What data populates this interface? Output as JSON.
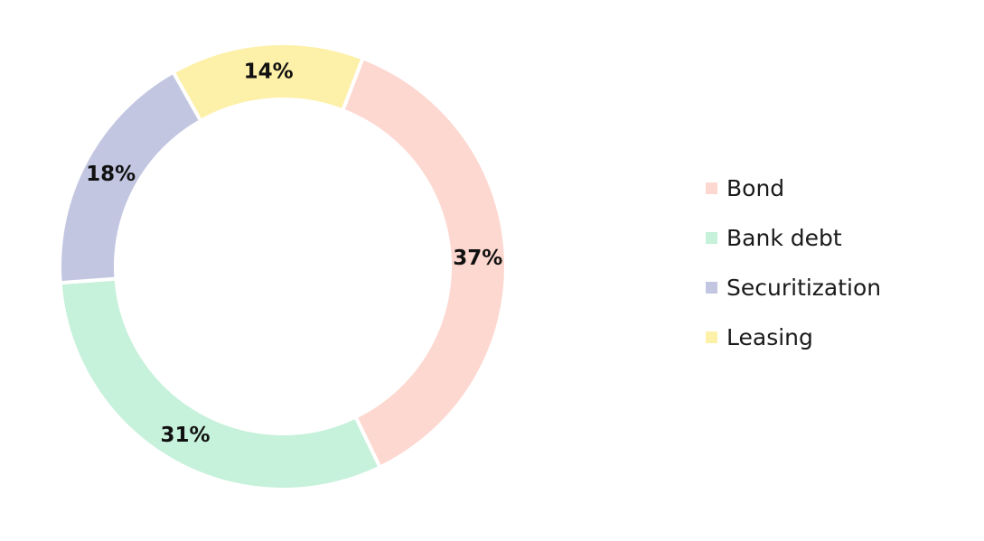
{
  "chart_data": {
    "type": "pie",
    "donut": true,
    "title": "",
    "categories": [
      "Bond",
      "Bank debt",
      "Securitization",
      "Leasing"
    ],
    "values": [
      37,
      31,
      18,
      14
    ],
    "value_labels": [
      "37%",
      "31%",
      "18%",
      "14%"
    ],
    "colors": [
      "#fdd8d0",
      "#c6f1da",
      "#c2c6e0",
      "#fdf0a8"
    ],
    "legend_position": "right"
  }
}
